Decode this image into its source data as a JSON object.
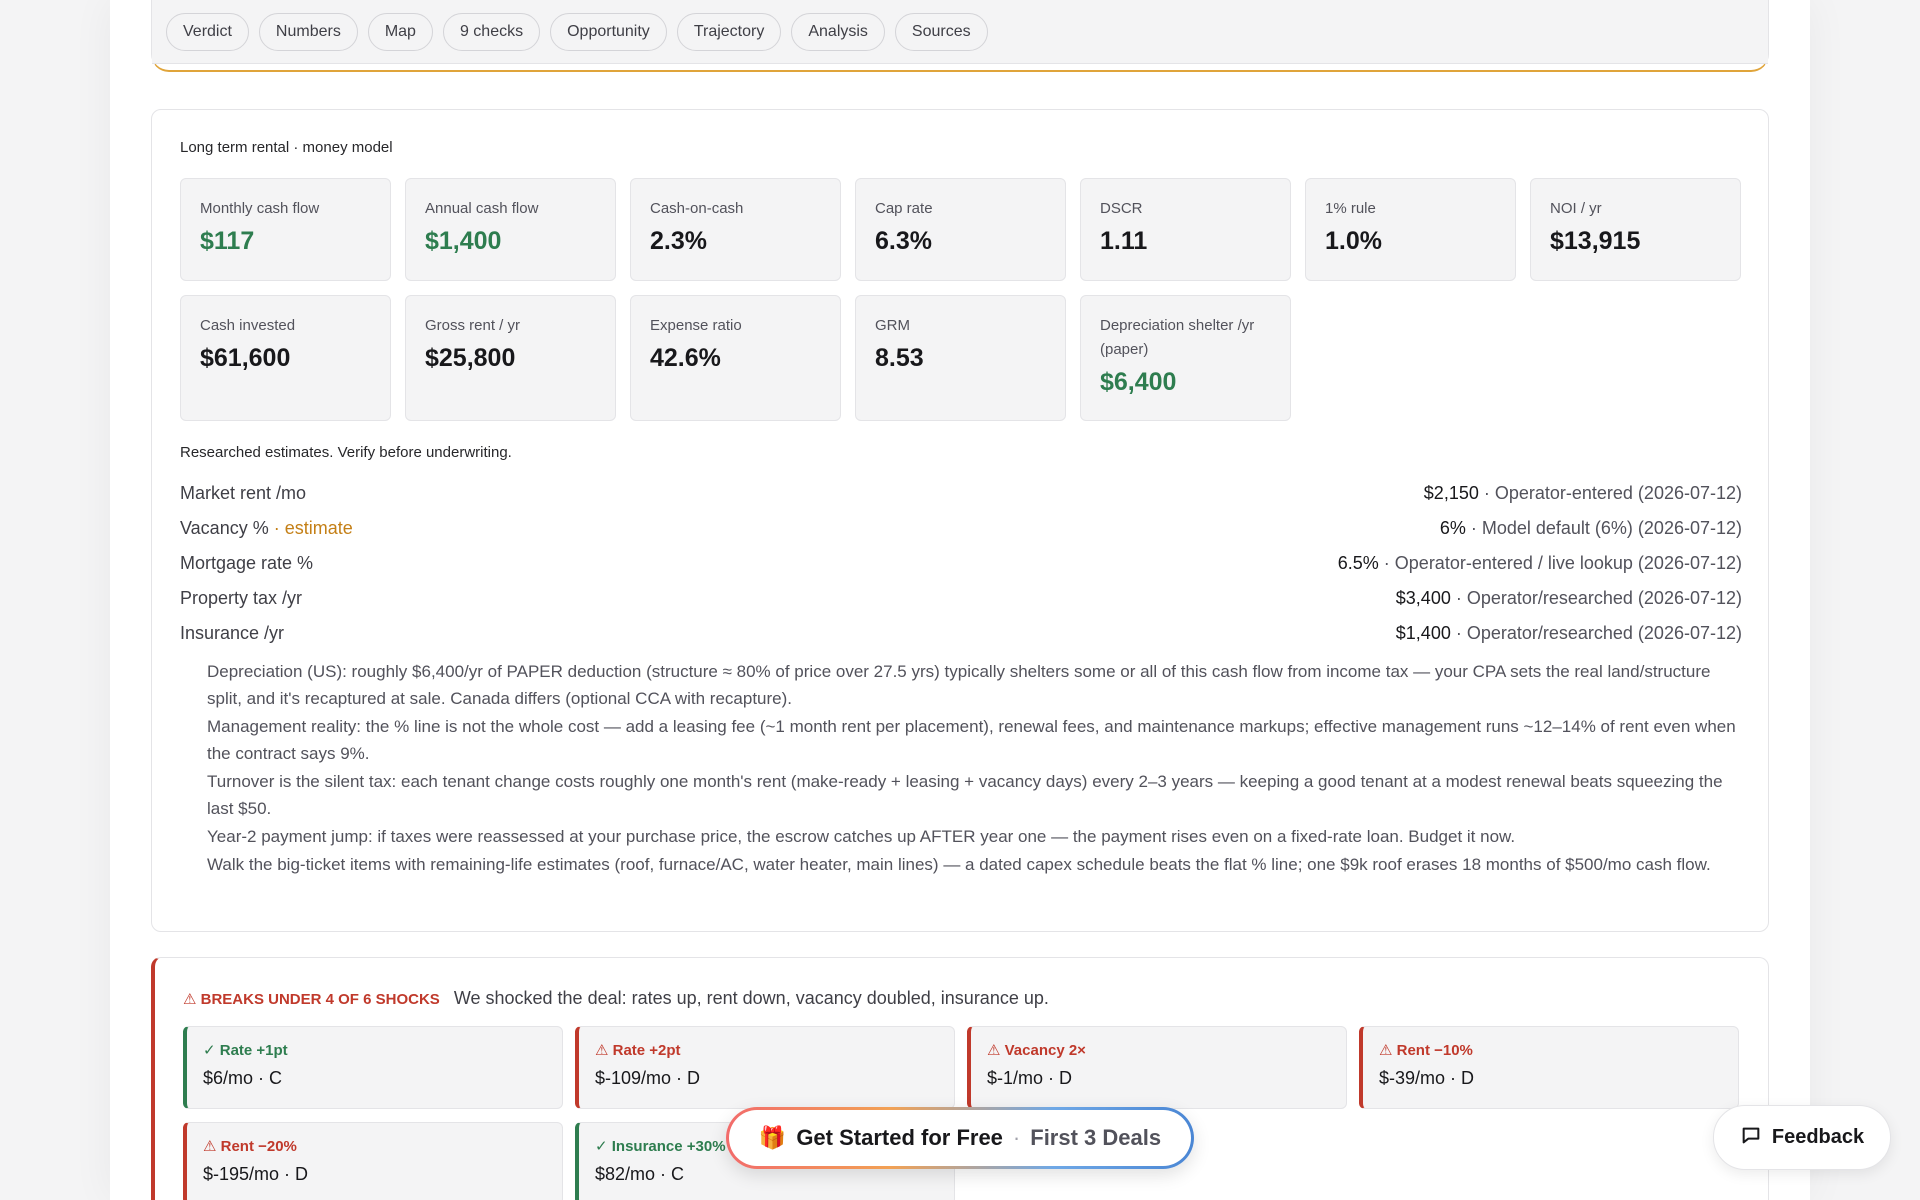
{
  "nav": {
    "tabs": [
      "Verdict",
      "Numbers",
      "Map",
      "9 checks",
      "Opportunity",
      "Trajectory",
      "Analysis",
      "Sources"
    ]
  },
  "model": {
    "title": "Long term rental · money model",
    "metrics_row1": [
      {
        "label": "Monthly cash flow",
        "value": "$117",
        "positive": true
      },
      {
        "label": "Annual cash flow",
        "value": "$1,400",
        "positive": true
      },
      {
        "label": "Cash-on-cash",
        "value": "2.3%",
        "positive": false
      },
      {
        "label": "Cap rate",
        "value": "6.3%",
        "positive": false
      },
      {
        "label": "DSCR",
        "value": "1.11",
        "positive": false
      },
      {
        "label": "1% rule",
        "value": "1.0%",
        "positive": false
      },
      {
        "label": "NOI / yr",
        "value": "$13,915",
        "positive": false
      }
    ],
    "metrics_row2": [
      {
        "label": "Cash invested",
        "value": "$61,600",
        "positive": false
      },
      {
        "label": "Gross rent / yr",
        "value": "$25,800",
        "positive": false
      },
      {
        "label": "Expense ratio",
        "value": "42.6%",
        "positive": false
      },
      {
        "label": "GRM",
        "value": "8.53",
        "positive": false
      },
      {
        "label": "Depreciation shelter /yr (paper)",
        "value": "$6,400",
        "positive": true
      }
    ],
    "estimates_note": "Researched estimates. Verify before underwriting.",
    "inputs": [
      {
        "label": "Market rent /mo",
        "tag": "",
        "value": "$2,150",
        "source": " · Operator-entered (2026-07-12)"
      },
      {
        "label": "Vacancy %",
        "tag": " · estimate",
        "value": "6%",
        "source": " · Model default (6%) (2026-07-12)"
      },
      {
        "label": "Mortgage rate %",
        "tag": "",
        "value": "6.5%",
        "source": " · Operator-entered / live lookup (2026-07-12)"
      },
      {
        "label": "Property tax /yr",
        "tag": "",
        "value": "$3,400",
        "source": " · Operator/researched (2026-07-12)"
      },
      {
        "label": "Insurance /yr",
        "tag": "",
        "value": "$1,400",
        "source": " · Operator/researched (2026-07-12)"
      }
    ],
    "notes": [
      "Depreciation (US): roughly $6,400/yr of PAPER deduction (structure ≈ 80% of price over 27.5 yrs) typically shelters some or all of this cash flow from income tax — your CPA sets the real land/structure split, and it's recaptured at sale. Canada differs (optional CCA with recapture).",
      "Management reality: the % line is not the whole cost — add a leasing fee (~1 month rent per placement), renewal fees, and maintenance markups; effective management runs ~12–14% of rent even when the contract says 9%.",
      "Turnover is the silent tax: each tenant change costs roughly one month's rent (make-ready + leasing + vacancy days) every 2–3 years — keeping a good tenant at a modest renewal beats squeezing the last $50.",
      "Year-2 payment jump: if taxes were reassessed at your purchase price, the escrow catches up AFTER year one — the payment rises even on a fixed-rate loan. Budget it now.",
      "Walk the big-ticket items with remaining-life estimates (roof, furnace/AC, water heater, main lines) — a dated capex schedule beats the flat % line; one $9k roof erases 18 months of $500/mo cash flow."
    ]
  },
  "shocks": {
    "badge": "⚠ BREAKS UNDER 4 OF 6 SHOCKS",
    "description": "We shocked the deal: rates up, rent down, vacancy doubled, insurance up.",
    "items": [
      {
        "name": "✓ Rate +1pt",
        "result": "$6/mo · C",
        "pass": true
      },
      {
        "name": "⚠ Rate +2pt",
        "result": "$-109/mo · D",
        "pass": false
      },
      {
        "name": "⚠ Vacancy 2×",
        "result": "$-1/mo · D",
        "pass": false
      },
      {
        "name": "⚠ Rent −10%",
        "result": "$-39/mo · D",
        "pass": false
      },
      {
        "name": "⚠ Rent −20%",
        "result": "$-195/mo · D",
        "pass": false
      },
      {
        "name": "✓ Insurance +30%",
        "result": "$82/mo · C",
        "pass": true
      }
    ]
  },
  "cta": {
    "icon": "gift-icon",
    "label": "Get Started for Free",
    "separator": "·",
    "sub": "First 3 Deals"
  },
  "feedback": {
    "label": "Feedback",
    "icon": "chat-bubble-icon"
  },
  "colors": {
    "positive": "#2e7d4f",
    "negative": "#c0392b",
    "estimate": "#c47f16",
    "accent": "#e0a43a"
  }
}
